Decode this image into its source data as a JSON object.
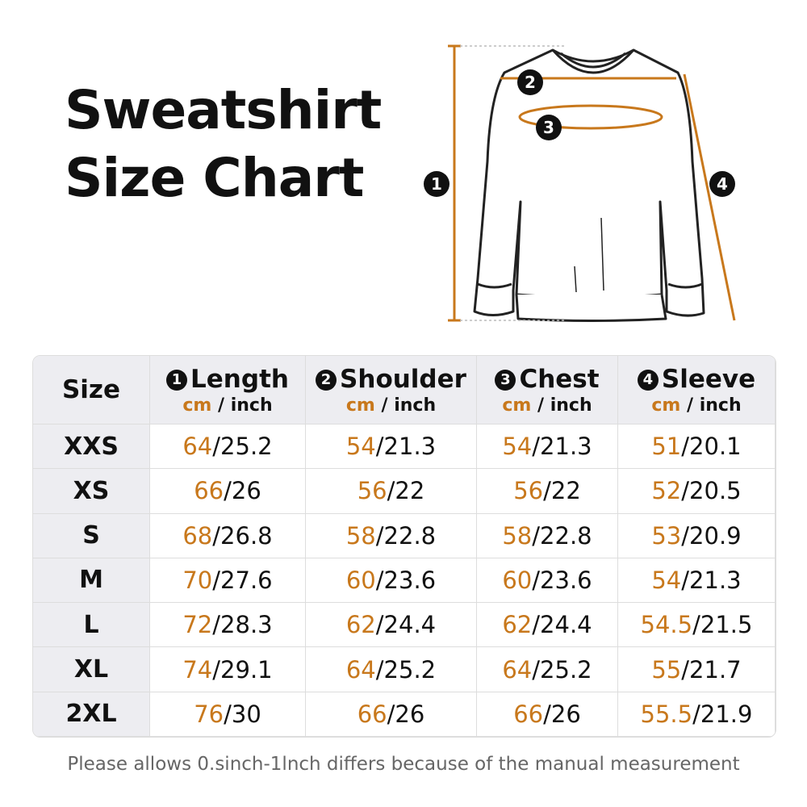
{
  "title": [
    "Sweatshirt",
    "Size Chart"
  ],
  "diagram": {
    "markers": [
      "1",
      "2",
      "3",
      "4"
    ]
  },
  "table": {
    "size_header": "Size",
    "unit_cm": "cm",
    "separator": "/",
    "unit_inch": "inch",
    "columns": [
      {
        "badge": "1",
        "label": "Length"
      },
      {
        "badge": "2",
        "label": "Shoulder"
      },
      {
        "badge": "3",
        "label": "Chest"
      },
      {
        "badge": "4",
        "label": "Sleeve"
      }
    ],
    "rows": [
      {
        "size": "XXS",
        "values": [
          [
            64,
            25.2
          ],
          [
            54,
            21.3
          ],
          [
            54,
            21.3
          ],
          [
            51,
            20.1
          ]
        ]
      },
      {
        "size": "XS",
        "values": [
          [
            66,
            26
          ],
          [
            56,
            22
          ],
          [
            56,
            22
          ],
          [
            52,
            20.5
          ]
        ]
      },
      {
        "size": "S",
        "values": [
          [
            68,
            26.8
          ],
          [
            58,
            22.8
          ],
          [
            58,
            22.8
          ],
          [
            53,
            20.9
          ]
        ]
      },
      {
        "size": "M",
        "values": [
          [
            70,
            27.6
          ],
          [
            60,
            23.6
          ],
          [
            60,
            23.6
          ],
          [
            54,
            21.3
          ]
        ]
      },
      {
        "size": "L",
        "values": [
          [
            72,
            28.3
          ],
          [
            62,
            24.4
          ],
          [
            62,
            24.4
          ],
          [
            54.5,
            21.5
          ]
        ]
      },
      {
        "size": "XL",
        "values": [
          [
            74,
            29.1
          ],
          [
            64,
            25.2
          ],
          [
            64,
            25.2
          ],
          [
            55,
            21.7
          ]
        ]
      },
      {
        "size": "2XL",
        "values": [
          [
            76,
            30
          ],
          [
            66,
            26
          ],
          [
            66,
            26
          ],
          [
            55.5,
            21.9
          ]
        ]
      }
    ]
  },
  "note": "Please allows 0.sinch-1lnch differs because of the manual measurement"
}
